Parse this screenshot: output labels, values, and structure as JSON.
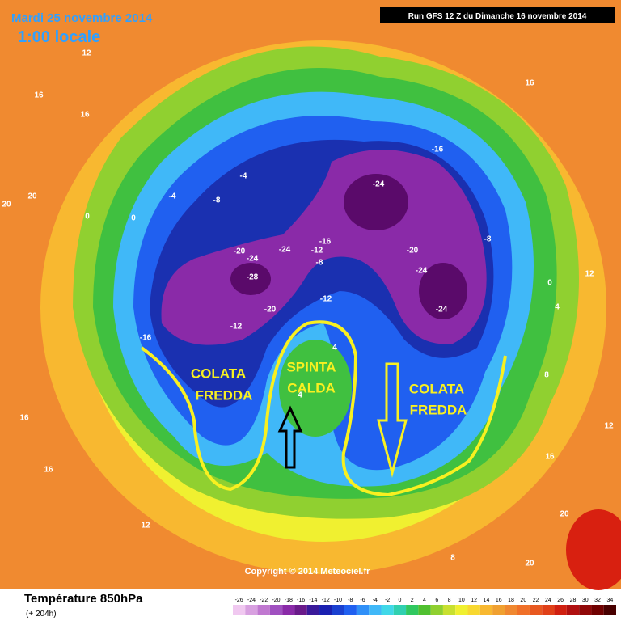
{
  "header": {
    "date": "Mardi 25 novembre 2014",
    "time": "1:00 locale",
    "run": "Run GFS 12 Z du Dimanche 16 novembre 2014"
  },
  "map": {
    "contour_labels": [
      "12",
      "16",
      "16",
      "20",
      "20",
      "16",
      "-4",
      "-4",
      "-8",
      "0",
      "0",
      "-16",
      "-24",
      "-16",
      "-20",
      "-24",
      "-24",
      "-12",
      "-8",
      "-28",
      "-20",
      "-12",
      "-12",
      "-16",
      "-20",
      "-24",
      "-24",
      "-8",
      "0",
      "4",
      "12",
      "4",
      "4",
      "8",
      "16",
      "20",
      "20",
      "12",
      "8",
      "16",
      "16",
      "12"
    ],
    "annotations": [
      "COLATA",
      "FREDDA",
      "SPINTA",
      "CALDA",
      "COLATA",
      "FREDDA"
    ],
    "copyright": "Copyright © 2014 Meteociel.fr"
  },
  "footer": {
    "title": "Température 850hPa",
    "subtitle": "(+ 204h)"
  },
  "legend": {
    "ticks": [
      -26,
      -24,
      -22,
      -20,
      -18,
      -16,
      -14,
      -12,
      -10,
      -8,
      -6,
      -4,
      -2,
      0,
      2,
      4,
      6,
      8,
      10,
      12,
      14,
      16,
      18,
      20,
      22,
      24,
      26,
      28,
      30,
      32,
      34
    ],
    "colors": [
      "#f0c8f0",
      "#d8a0e0",
      "#c078d0",
      "#a050c0",
      "#8a2aa8",
      "#6a1a8a",
      "#3a1a9a",
      "#1a20b0",
      "#1a40d0",
      "#2060f0",
      "#3090f8",
      "#40b8f8",
      "#40d8e8",
      "#30d0b0",
      "#30c860",
      "#50c030",
      "#90d030",
      "#c8e030",
      "#f0f030",
      "#f8d830",
      "#f8b830",
      "#f0a030",
      "#f08830",
      "#f07028",
      "#e85820",
      "#e04018",
      "#d02010",
      "#b01010",
      "#900808",
      "#700000",
      "#480000"
    ]
  }
}
